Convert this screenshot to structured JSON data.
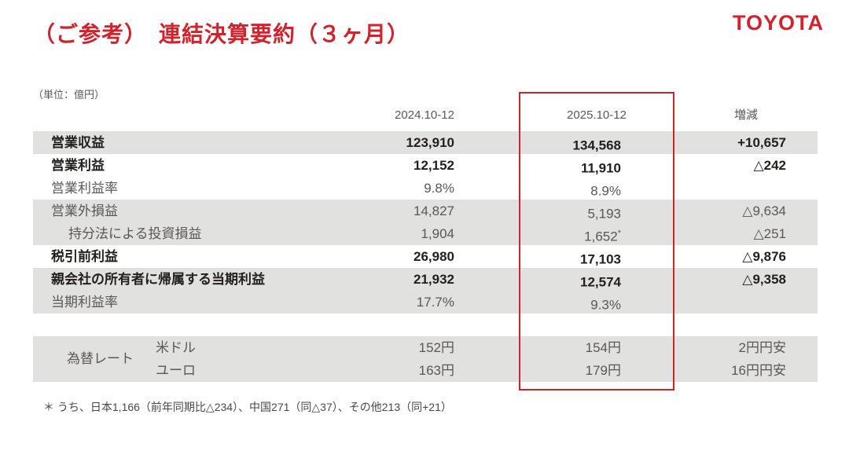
{
  "page": {
    "title": "（ご参考）　連結決算要約（３ヶ月）",
    "logo": "TOYOTA",
    "unit_label": "（単位：億円）",
    "footnote": "＊ うち、日本1,166（前年同期比△234）、中国271（同△37）、その他213（同+21）"
  },
  "colors": {
    "accent_red": "#d0232e",
    "row_shade_gray": "#e1e1df",
    "text_gray": "#595757",
    "text_dark": "#221f1f"
  },
  "table": {
    "columns": [
      "2024.10-12",
      "2025.10-12",
      "増減"
    ],
    "rows": [
      {
        "label": "営業収益",
        "y2024": "123,910",
        "y2025": "134,568",
        "change": "+10,657",
        "bold": true,
        "shaded": true,
        "indent": false
      },
      {
        "label": "営業利益",
        "y2024": "12,152",
        "y2025": "11,910",
        "change": "△242",
        "bold": true,
        "shaded": false,
        "indent": false
      },
      {
        "label": "営業利益率",
        "y2024": "9.8%",
        "y2025": "8.9%",
        "change": "",
        "bold": false,
        "shaded": false,
        "indent": false
      },
      {
        "label": "営業外損益",
        "y2024": "14,827",
        "y2025": "5,193",
        "change": "△9,634",
        "bold": false,
        "shaded": true,
        "indent": false
      },
      {
        "label": "持分法による投資損益",
        "y2024": "1,904",
        "y2025": "1,652",
        "note": "*",
        "change": "△251",
        "bold": false,
        "shaded": true,
        "indent": true
      },
      {
        "label": "税引前利益",
        "y2024": "26,980",
        "y2025": "17,103",
        "change": "△9,876",
        "bold": true,
        "shaded": false,
        "indent": false
      },
      {
        "label": "親会社の所有者に帰属する当期利益",
        "y2024": "21,932",
        "y2025": "12,574",
        "change": "△9,358",
        "bold": true,
        "shaded": true,
        "indent": false
      },
      {
        "label": "当期利益率",
        "y2024": "17.7%",
        "y2025": "9.3%",
        "change": "",
        "bold": false,
        "shaded": true,
        "indent": false
      }
    ]
  },
  "fx": {
    "label": "為替レート",
    "rows": [
      {
        "currency": "米ドル",
        "y2024": "152円",
        "y2025": "154円",
        "change": "2円円安"
      },
      {
        "currency": "ユーロ",
        "y2024": "163円",
        "y2025": "179円",
        "change": "16円円安"
      }
    ]
  }
}
